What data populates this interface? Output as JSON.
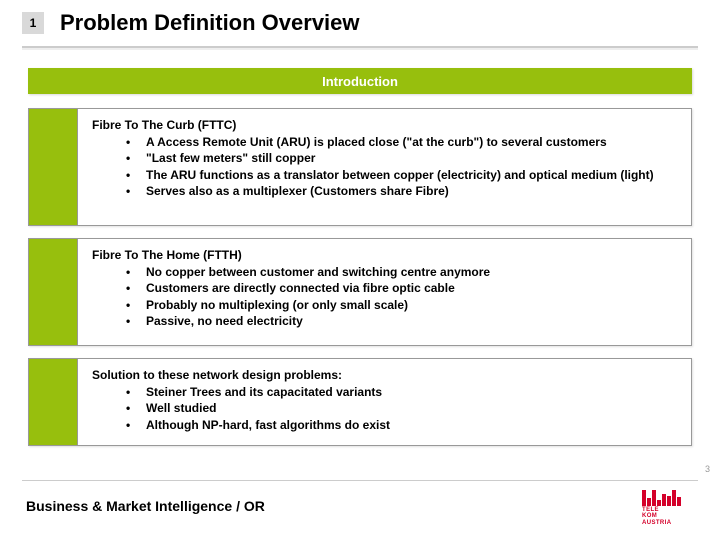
{
  "slide_number": "1",
  "title": "Problem Definition Overview",
  "banner": "Introduction",
  "blocks": [
    {
      "heading": "Fibre To The Curb (FTTC)",
      "bullets": [
        "A Access Remote Unit (ARU) is placed close (\"at the curb\") to several customers",
        "\"Last few meters\" still copper",
        "The ARU functions as a translator between copper (electricity) and optical medium (light)",
        "Serves also as a multiplexer (Customers share Fibre)"
      ]
    },
    {
      "heading": "Fibre To The Home (FTTH)",
      "bullets": [
        "No copper between customer and switching centre anymore",
        "Customers are directly connected via fibre optic cable",
        "Probably no multiplexing (or only small scale)",
        "Passive, no need electricity"
      ]
    },
    {
      "heading": "Solution to these network design problems:",
      "bullets": [
        "Steiner Trees and its capacitated variants",
        "Well studied",
        "Although NP-hard, fast algorithms do exist"
      ]
    }
  ],
  "page_number": "3",
  "footer": "Business & Market Intelligence / OR",
  "logo": {
    "line1": "TELE",
    "line2": "KOM",
    "line3": "AUSTRIA"
  },
  "colors": {
    "accent": "#97bf0d",
    "brand": "#d4002a",
    "slide_box_bg": "#d9d9d9"
  },
  "block_tops": [
    108,
    238,
    358
  ],
  "block_heights": [
    118,
    108,
    88
  ],
  "logo_bar_heights": [
    16,
    8,
    16,
    6,
    12,
    10,
    16,
    9
  ]
}
